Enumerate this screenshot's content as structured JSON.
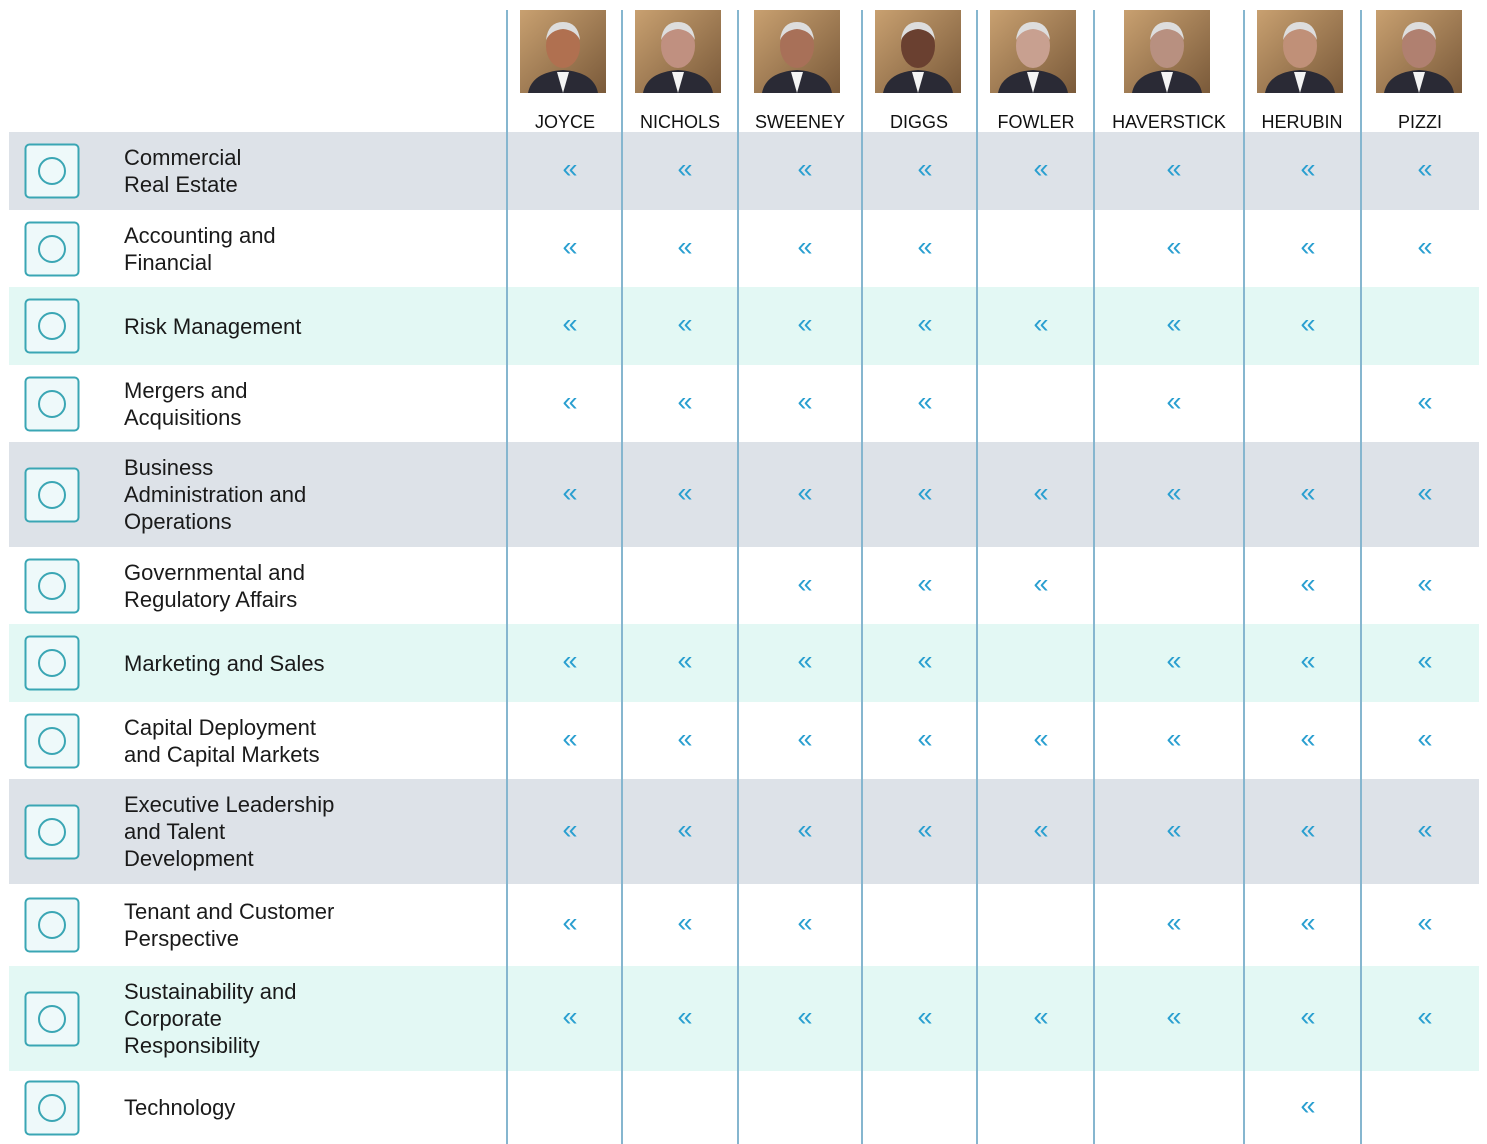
{
  "header": {
    "directors": [
      "JOYCE",
      "NICHOLS",
      "SWEENEY",
      "DIGGS",
      "FOWLER",
      "HAVERSTICK",
      "HERUBIN",
      "PIZZI"
    ]
  },
  "rows": [
    {
      "label": [
        "Commercial",
        "Real Estate"
      ],
      "marks": [
        "«",
        "«",
        "«",
        "«",
        "«",
        "«",
        "«",
        "«"
      ]
    },
    {
      "label": [
        "Accounting and",
        "Financial"
      ],
      "marks": [
        "«",
        "«",
        "«",
        "«",
        null,
        "«",
        "«",
        "«"
      ]
    },
    {
      "label": [
        "Risk Management"
      ],
      "marks": [
        "«",
        "«",
        "«",
        "«",
        "«",
        "«",
        "«",
        null
      ]
    },
    {
      "label": [
        "Mergers and",
        "Acquisitions"
      ],
      "marks": [
        "«",
        "«",
        "«",
        "«",
        null,
        "«",
        null,
        "«"
      ]
    },
    {
      "label": [
        "Business",
        "Administration and",
        "Operations"
      ],
      "marks": [
        "«",
        "«",
        "«",
        "«",
        "«",
        "«",
        "«",
        "«"
      ]
    },
    {
      "label": [
        "Governmental and",
        "Regulatory Affairs"
      ],
      "marks": [
        null,
        null,
        "«",
        "«",
        "«",
        null,
        "«",
        "«"
      ]
    },
    {
      "label": [
        "Marketing and Sales"
      ],
      "marks": [
        "«",
        "«",
        "«",
        "«",
        null,
        "«",
        "«",
        "«"
      ]
    },
    {
      "label": [
        "Capital Deployment",
        "and Capital Markets"
      ],
      "marks": [
        "«",
        "«",
        "«",
        "«",
        "«",
        "«",
        "«",
        "«"
      ]
    },
    {
      "label": [
        "Executive Leadership",
        "and Talent",
        "Development"
      ],
      "marks": [
        "«",
        "«",
        "«",
        "«",
        "«",
        "«",
        "«",
        "«"
      ]
    },
    {
      "label": [
        "Tenant and Customer",
        "Perspective"
      ],
      "marks": [
        "«",
        "«",
        "«",
        null,
        null,
        "«",
        "«",
        "«"
      ]
    },
    {
      "label": [
        "Sustainability and",
        "Corporate",
        "Responsibility"
      ],
      "marks": [
        "«",
        "«",
        "«",
        "«",
        "«",
        "«",
        "«",
        "«"
      ]
    },
    {
      "label": [
        "Technology"
      ],
      "marks": [
        null,
        null,
        null,
        null,
        null,
        null,
        "«",
        null
      ]
    }
  ]
}
